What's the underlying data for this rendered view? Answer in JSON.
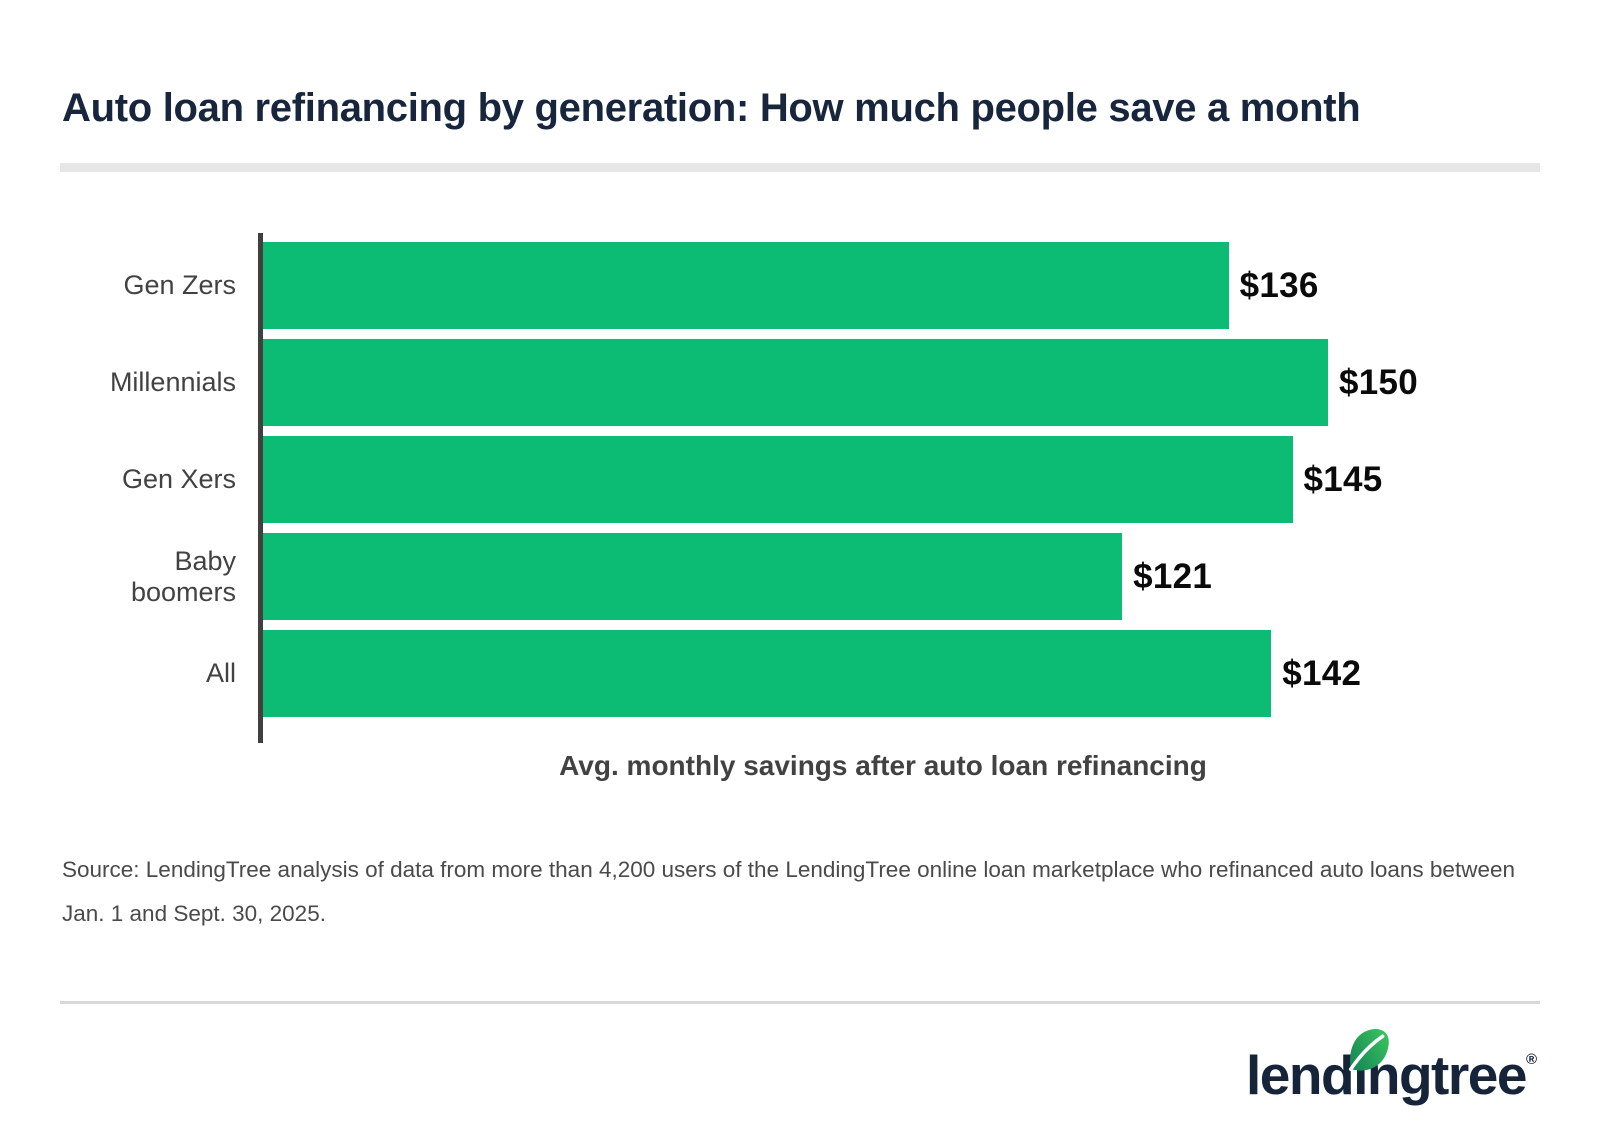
{
  "page": {
    "title": "Auto loan refinancing by generation: How much people save a month",
    "source": "Source: LendingTree analysis of data from more than 4,200 users of the LendingTree online loan marketplace who refinanced auto loans between Jan. 1 and Sept. 30, 2025."
  },
  "chart_data": {
    "type": "bar",
    "orientation": "horizontal",
    "categories": [
      "Gen Zers",
      "Millennials",
      "Gen Xers",
      "Baby boomers",
      "All"
    ],
    "values": [
      136,
      150,
      145,
      121,
      142
    ],
    "value_labels": [
      "$136",
      "$150",
      "$145",
      "$121",
      "$142"
    ],
    "title": "Auto loan refinancing by generation: How much people save a month",
    "xlabel": "Avg. monthly savings after auto loan refinancing",
    "ylabel": "",
    "xlim": [
      0,
      180
    ],
    "grid": false,
    "legend": false,
    "bar_color": "#0CBC74",
    "axis_color": "#404040",
    "value_label_color": "#0A0A0A",
    "category_label_color": "#424242"
  },
  "brand": {
    "wordmark_pre": "lend",
    "wordmark_i": "ı",
    "wordmark_post": "ngtree",
    "registered": "®",
    "navy": "#16243A",
    "leaf_green_dark": "#157F56",
    "leaf_green_light": "#3BC95F"
  }
}
